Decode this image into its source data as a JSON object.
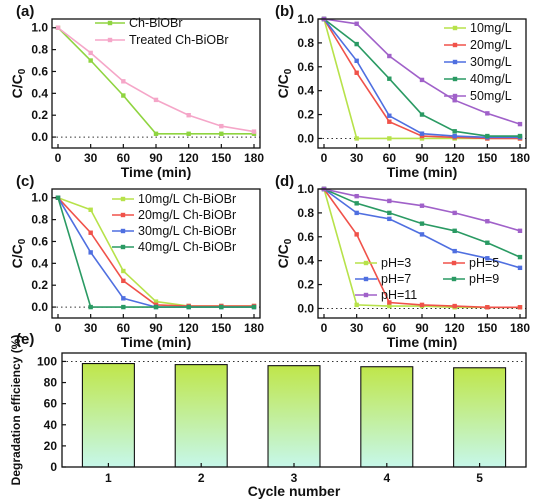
{
  "chart_data": [
    {
      "panel": "(a)",
      "type": "line",
      "x": [
        0,
        30,
        60,
        90,
        120,
        150,
        180
      ],
      "xlabel": "Time (min)",
      "ylabel_main": "C/C",
      "ylabel_sub": "0",
      "xlim": [
        0,
        180
      ],
      "ylim": [
        -0.1,
        1.08
      ],
      "xticks": [
        0,
        30,
        60,
        90,
        120,
        150,
        180
      ],
      "yticks": [
        0.0,
        0.2,
        0.4,
        0.6,
        0.8,
        1.0
      ],
      "reference_line": 0,
      "legend_position": "top-right",
      "series": [
        {
          "name": "Ch-BiOBr",
          "color": "#8fd440",
          "values": [
            1.0,
            0.7,
            0.38,
            0.03,
            0.03,
            0.03,
            0.03
          ]
        },
        {
          "name": "Treated Ch-BiOBr",
          "color": "#f5a6c8",
          "values": [
            1.0,
            0.77,
            0.51,
            0.34,
            0.2,
            0.1,
            0.05
          ]
        }
      ]
    },
    {
      "panel": "(b)",
      "type": "line",
      "x": [
        0,
        30,
        60,
        90,
        120,
        150,
        180
      ],
      "xlabel": "Time (min)",
      "ylabel_main": "C/C",
      "ylabel_sub": "0",
      "xlim": [
        0,
        180
      ],
      "ylim": [
        -0.08,
        1.0
      ],
      "xticks": [
        0,
        30,
        60,
        90,
        120,
        150,
        180
      ],
      "yticks": [
        0.0,
        0.2,
        0.4,
        0.6,
        0.8,
        1.0
      ],
      "reference_line": 0,
      "legend_position": "top-right",
      "series": [
        {
          "name": "10mg/L",
          "color": "#b7e24a",
          "values": [
            1.0,
            0.0,
            0.0,
            0.0,
            0.0,
            0.0,
            0.0
          ]
        },
        {
          "name": "20mg/L",
          "color": "#f0524a",
          "values": [
            1.0,
            0.55,
            0.14,
            0.02,
            0.01,
            0.0,
            0.0
          ]
        },
        {
          "name": "30mg/L",
          "color": "#4f6fe0",
          "values": [
            1.0,
            0.65,
            0.19,
            0.04,
            0.02,
            0.01,
            0.01
          ]
        },
        {
          "name": "40mg/L",
          "color": "#2a9a63",
          "values": [
            1.0,
            0.79,
            0.5,
            0.2,
            0.06,
            0.02,
            0.02
          ]
        },
        {
          "name": "50mg/L",
          "color": "#a061c9",
          "values": [
            1.0,
            0.96,
            0.69,
            0.49,
            0.32,
            0.21,
            0.12
          ]
        }
      ]
    },
    {
      "panel": "(c)",
      "type": "line",
      "x": [
        0,
        30,
        60,
        90,
        120,
        150,
        180
      ],
      "xlabel": "Time (min)",
      "ylabel_main": "C/C",
      "ylabel_sub": "0",
      "xlim": [
        0,
        180
      ],
      "ylim": [
        -0.1,
        1.08
      ],
      "xticks": [
        0,
        30,
        60,
        90,
        120,
        150,
        180
      ],
      "yticks": [
        0.0,
        0.2,
        0.4,
        0.6,
        0.8,
        1.0
      ],
      "reference_line": 0,
      "legend_position": "top-right",
      "series": [
        {
          "name": "10mg/L Ch-BiOBr",
          "color": "#b7e24a",
          "values": [
            1.0,
            0.89,
            0.33,
            0.05,
            0.01,
            0.01,
            0.01
          ]
        },
        {
          "name": "20mg/L Ch-BiOBr",
          "color": "#f0524a",
          "values": [
            1.0,
            0.68,
            0.24,
            0.02,
            0.01,
            0.01,
            0.01
          ]
        },
        {
          "name": "30mg/L Ch-BiOBr",
          "color": "#4f6fe0",
          "values": [
            1.0,
            0.5,
            0.08,
            0.0,
            0.0,
            0.0,
            0.0
          ]
        },
        {
          "name": "40mg/L Ch-BiOBr",
          "color": "#2a9a63",
          "values": [
            1.0,
            0.0,
            0.0,
            0.0,
            0.0,
            0.0,
            0.0
          ]
        }
      ]
    },
    {
      "panel": "(d)",
      "type": "line",
      "x": [
        0,
        30,
        60,
        90,
        120,
        150,
        180
      ],
      "xlabel": "Time (min)",
      "ylabel_main": "C/C",
      "ylabel_sub": "0",
      "xlim": [
        0,
        180
      ],
      "ylim": [
        -0.08,
        1.0
      ],
      "xticks": [
        0,
        30,
        60,
        90,
        120,
        150,
        180
      ],
      "yticks": [
        0.0,
        0.2,
        0.4,
        0.6,
        0.8,
        1.0
      ],
      "reference_line": 0,
      "legend_position": "bottom-left",
      "series": [
        {
          "name": "pH=3",
          "color": "#b7e24a",
          "values": [
            1.0,
            0.03,
            0.02,
            0.02,
            0.01,
            0.01,
            0.01
          ]
        },
        {
          "name": "pH=5",
          "color": "#f0524a",
          "values": [
            1.0,
            0.62,
            0.05,
            0.03,
            0.02,
            0.01,
            0.01
          ]
        },
        {
          "name": "pH=7",
          "color": "#4f6fe0",
          "values": [
            1.0,
            0.8,
            0.75,
            0.62,
            0.48,
            0.42,
            0.34
          ]
        },
        {
          "name": "pH=9",
          "color": "#2a9a63",
          "values": [
            1.0,
            0.88,
            0.8,
            0.71,
            0.65,
            0.55,
            0.43
          ]
        },
        {
          "name": "pH=11",
          "color": "#a061c9",
          "values": [
            1.0,
            0.94,
            0.9,
            0.86,
            0.8,
            0.73,
            0.65
          ]
        }
      ]
    },
    {
      "panel": "(e)",
      "type": "bar",
      "categories": [
        "1",
        "2",
        "3",
        "4",
        "5"
      ],
      "values": [
        98,
        97,
        96,
        95,
        94
      ],
      "xlabel": "Cycle number",
      "ylabel": "Degradation efficiency (%)",
      "ylim": [
        0,
        108
      ],
      "yticks": [
        0,
        20,
        40,
        60,
        80,
        100
      ],
      "reference_line": 100,
      "bar_gradient": [
        "#bfe64a",
        "#c6f7ea"
      ]
    }
  ]
}
